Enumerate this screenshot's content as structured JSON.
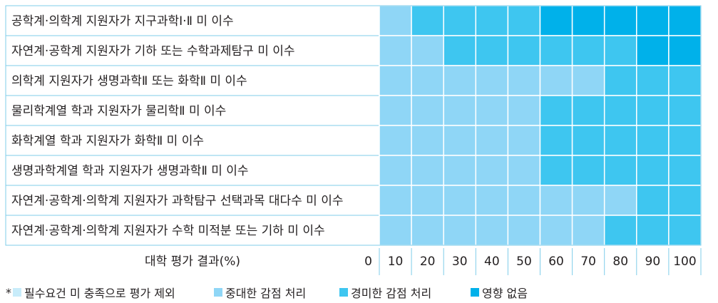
{
  "chart_data": {
    "type": "heatmap",
    "rows": [
      "공학계·의학계 지원자가 지구과학Ⅰ·Ⅱ 미 이수",
      "자연계·공학계 지원자가 기하 또는 수학과제탐구 미 이수",
      "의학계 지원자가 생명과학Ⅱ 또는 화학Ⅱ 미 이수",
      "물리학계열 학과 지원자가 물리학Ⅱ 미 이수",
      "화학계열 학과 지원자가 화학Ⅱ 미 이수",
      "생명과학계열 학과 지원자가 생명과학Ⅱ 미 이수",
      "자연계·공학계·의학계 지원자가 과학탐구 선택과목 대다수 미 이수",
      "자연계·공학계·의학계 지원자가 수학 미적분 또는 기하 미 이수"
    ],
    "columns": [
      "10",
      "20",
      "30",
      "40",
      "50",
      "60",
      "70",
      "80",
      "90",
      "100"
    ],
    "zero_label": "0",
    "xlabel": "대학 평가 결과(%)",
    "levels": [
      {
        "name": "필수요건 미 충족으로 평가 제외",
        "color": "#c8ecfa"
      },
      {
        "name": "중대한 감점 처리",
        "color": "#8fd6f6"
      },
      {
        "name": "경미한 감점 처리",
        "color": "#3ec6f0"
      },
      {
        "name": "영향 없음",
        "color": "#00b1ea"
      }
    ],
    "values": [
      [
        1,
        2,
        2,
        2,
        2,
        3,
        3,
        3,
        3,
        3
      ],
      [
        1,
        1,
        2,
        2,
        2,
        2,
        2,
        2,
        3,
        3
      ],
      [
        1,
        1,
        1,
        1,
        1,
        1,
        1,
        2,
        2,
        2
      ],
      [
        1,
        1,
        1,
        1,
        1,
        2,
        2,
        2,
        2,
        2
      ],
      [
        1,
        1,
        1,
        1,
        1,
        2,
        2,
        2,
        2,
        2
      ],
      [
        1,
        1,
        1,
        1,
        1,
        2,
        2,
        2,
        2,
        2
      ],
      [
        1,
        1,
        1,
        1,
        1,
        1,
        1,
        1,
        2,
        2
      ],
      [
        1,
        1,
        1,
        1,
        1,
        1,
        1,
        2,
        2,
        2
      ]
    ]
  },
  "legend": {
    "asterisk": "*",
    "items": [
      {
        "label": "필수요건 미 충족으로 평가 제외",
        "color": "#c8ecfa"
      },
      {
        "label": "중대한 감점 처리",
        "color": "#8fd6f6"
      },
      {
        "label": "경미한 감점 처리",
        "color": "#3ec6f0"
      },
      {
        "label": "영향 없음",
        "color": "#00b1ea"
      }
    ]
  },
  "grid_color": "#7fcdea"
}
